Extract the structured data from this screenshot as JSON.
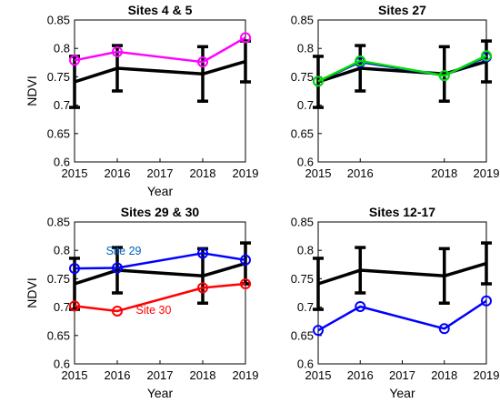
{
  "chart_data": [
    {
      "type": "line",
      "title": "Sites 4 & 5",
      "xlabel": "Year",
      "ylabel": "NDVI",
      "xlim": [
        2015,
        2019
      ],
      "ylim": [
        0.6,
        0.85
      ],
      "xticks": [
        "2015",
        "2016",
        "2017",
        "2018",
        "2019"
      ],
      "yticks": [
        "0.6",
        "0.65",
        "0.7",
        "0.75",
        "0.8",
        "0.85"
      ],
      "grid": false,
      "series": [
        {
          "color": "#000000",
          "marker": "none",
          "x": [
            2015,
            2016,
            2018,
            2019
          ],
          "y": [
            0.741,
            0.765,
            0.755,
            0.777
          ],
          "err": [
            0.045,
            0.04,
            0.048,
            0.036
          ]
        },
        {
          "color": "#ff00ff",
          "marker": "circle",
          "x": [
            2015,
            2016,
            2018,
            2019
          ],
          "y": [
            0.779,
            0.794,
            0.776,
            0.819
          ]
        }
      ]
    },
    {
      "type": "line",
      "title": "Sites 27",
      "xlabel": "",
      "ylabel": "",
      "xlim": [
        2015,
        2019
      ],
      "ylim": [
        0.6,
        0.85
      ],
      "xticks": [
        "2015",
        "2016",
        "2018",
        "2019"
      ],
      "yticks": [
        "0.6",
        "0.65",
        "0.7",
        "0.75",
        "0.8",
        "0.85"
      ],
      "grid": false,
      "series": [
        {
          "color": "#000000",
          "marker": "none",
          "x": [
            2015,
            2016,
            2018,
            2019
          ],
          "y": [
            0.741,
            0.765,
            0.755,
            0.777
          ],
          "err": [
            0.045,
            0.04,
            0.048,
            0.036
          ]
        },
        {
          "color": "#0000ff",
          "marker": "circle",
          "x": [
            2015,
            2016,
            2018,
            2019
          ],
          "y": [
            0.742,
            0.776,
            0.752,
            0.785
          ]
        },
        {
          "color": "#00dd00",
          "marker": "circle",
          "x": [
            2015,
            2016,
            2018,
            2019
          ],
          "y": [
            0.742,
            0.778,
            0.752,
            0.787
          ]
        }
      ]
    },
    {
      "type": "line",
      "title": "Sites 29 & 30",
      "xlabel": "Year",
      "ylabel": "NDVI",
      "xlim": [
        2015,
        2019
      ],
      "ylim": [
        0.6,
        0.85
      ],
      "xticks": [
        "2015",
        "2016",
        "2017",
        "2018",
        "2019"
      ],
      "yticks": [
        "0.6",
        "0.65",
        "0.7",
        "0.75",
        "0.8",
        "0.85"
      ],
      "grid": false,
      "series": [
        {
          "color": "#000000",
          "marker": "none",
          "x": [
            2015,
            2016,
            2018,
            2019
          ],
          "y": [
            0.741,
            0.765,
            0.755,
            0.777
          ],
          "err": [
            0.045,
            0.04,
            0.048,
            0.036
          ]
        },
        {
          "name": "Site 29",
          "color": "#0000ff",
          "marker": "circle",
          "x": [
            2015,
            2016,
            2018,
            2019
          ],
          "y": [
            0.768,
            0.769,
            0.795,
            0.783
          ]
        },
        {
          "name": "Site 30",
          "color": "#ff0000",
          "marker": "circle",
          "x": [
            2015,
            2016,
            2018,
            2019
          ],
          "y": [
            0.702,
            0.693,
            0.734,
            0.741
          ]
        }
      ],
      "annotations": [
        {
          "text": "Site 29",
          "x": 2016.15,
          "y": 0.792,
          "color": "#0060c0"
        },
        {
          "text": "Site 30",
          "x": 2016.85,
          "y": 0.688,
          "color": "#ff0000"
        }
      ]
    },
    {
      "type": "line",
      "title": "Sites 12-17",
      "xlabel": "Year",
      "ylabel": "",
      "xlim": [
        2015,
        2019
      ],
      "ylim": [
        0.6,
        0.85
      ],
      "xticks": [
        "2015",
        "2016",
        "2017",
        "2018",
        "2019"
      ],
      "yticks": [
        "0.6",
        "0.65",
        "0.7",
        "0.75",
        "0.8",
        "0.85"
      ],
      "grid": false,
      "series": [
        {
          "color": "#000000",
          "marker": "none",
          "x": [
            2015,
            2016,
            2018,
            2019
          ],
          "y": [
            0.741,
            0.765,
            0.755,
            0.777
          ],
          "err": [
            0.045,
            0.04,
            0.048,
            0.036
          ]
        },
        {
          "color": "#0000ff",
          "marker": "circle",
          "x": [
            2015,
            2016,
            2018,
            2019
          ],
          "y": [
            0.659,
            0.701,
            0.662,
            0.711
          ]
        }
      ]
    }
  ]
}
